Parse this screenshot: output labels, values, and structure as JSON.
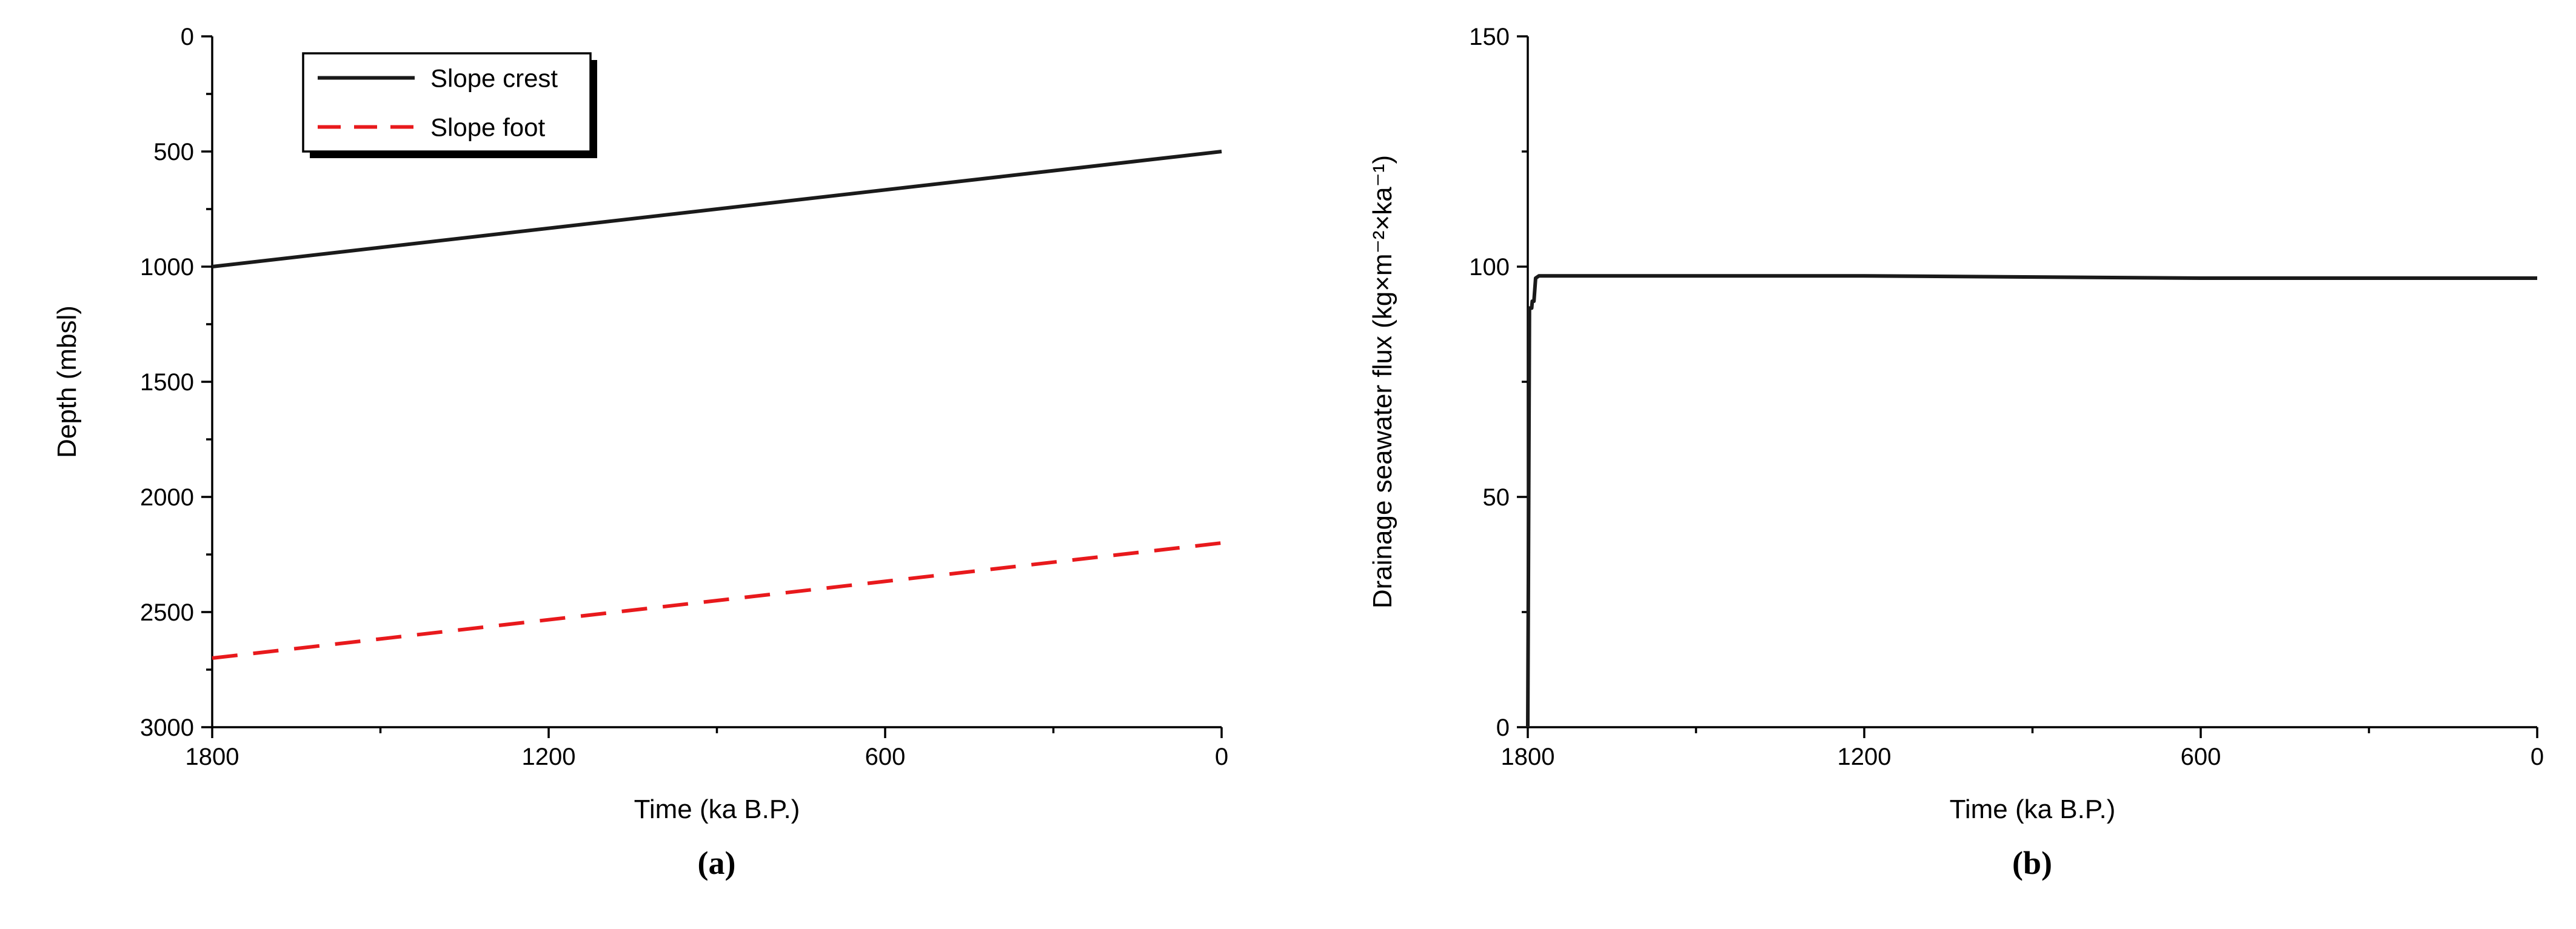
{
  "figure": {
    "background": "#ffffff",
    "panel_captions": [
      "(a)",
      "(b)"
    ]
  },
  "chart_data": [
    {
      "type": "line",
      "caption": "(a)",
      "title": "",
      "xlabel": "Time (ka B.P.)",
      "ylabel": "Depth (mbsl)",
      "xlim": [
        1800,
        0
      ],
      "ylim": [
        0,
        3000
      ],
      "y_inverted": true,
      "x_ticks": [
        1800,
        1200,
        600,
        0
      ],
      "y_ticks": [
        0,
        500,
        1000,
        1500,
        2000,
        2500,
        3000
      ],
      "grid": false,
      "legend": {
        "visible": true,
        "position": "top-left",
        "entries": [
          "Slope crest",
          "Slope foot"
        ]
      },
      "series": [
        {
          "name": "Slope crest",
          "color": "#1a1a1a",
          "dash": "solid",
          "width": 6,
          "x": [
            1800,
            0
          ],
          "y": [
            1000,
            500
          ]
        },
        {
          "name": "Slope foot",
          "color": "#e8191c",
          "dash": "dashed",
          "width": 6,
          "x": [
            1800,
            0
          ],
          "y": [
            2700,
            2200
          ]
        }
      ]
    },
    {
      "type": "line",
      "caption": "(b)",
      "title": "",
      "xlabel": "Time (ka B.P.)",
      "ylabel": "Drainage seawater flux (kg×m⁻²×ka⁻¹)",
      "xlim": [
        1800,
        0
      ],
      "ylim": [
        0,
        150
      ],
      "y_inverted": false,
      "x_ticks": [
        1800,
        1200,
        600,
        0
      ],
      "y_ticks": [
        0,
        50,
        100,
        150
      ],
      "grid": false,
      "legend": {
        "visible": false,
        "position": "none",
        "entries": []
      },
      "series": [
        {
          "name": "Drainage seawater flux",
          "color": "#1a1a1a",
          "dash": "solid",
          "width": 6,
          "x": [
            1800,
            1799,
            1797,
            1793,
            1792,
            1789,
            1786,
            1780,
            1750,
            1200,
            600,
            0
          ],
          "y": [
            0,
            30,
            91,
            91,
            92.5,
            92.5,
            97.5,
            98,
            98,
            98,
            97.5,
            97.5
          ]
        }
      ]
    }
  ]
}
